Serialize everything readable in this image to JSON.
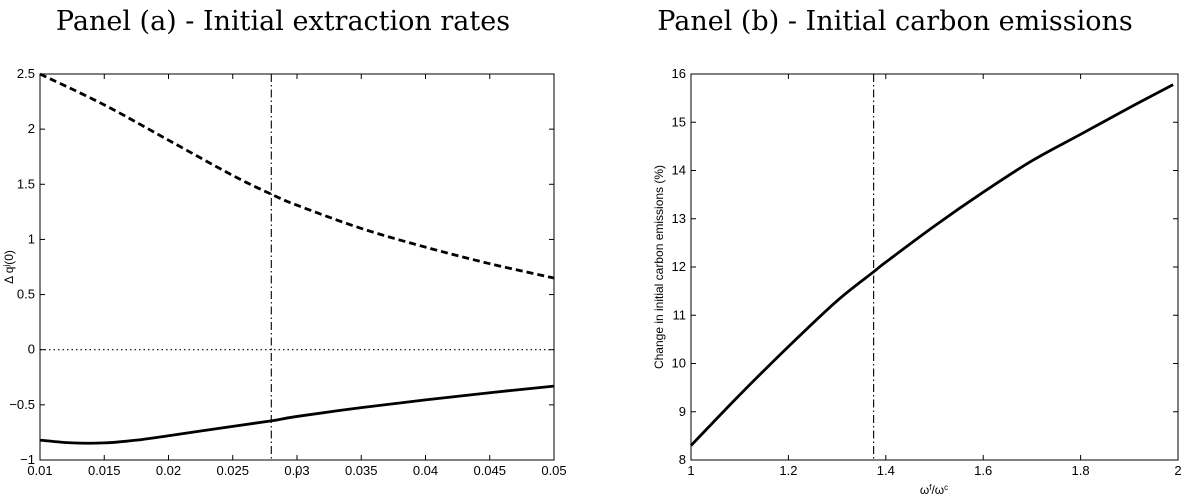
{
  "chart_data": [
    {
      "type": "line",
      "title": "Panel (a) - Initial extraction rates",
      "xlabel": "r",
      "ylabel_prefix": "Δ q",
      "ylabel_sup": "j",
      "ylabel_suffix": "(0)",
      "xlim": [
        0.01,
        0.05
      ],
      "ylim": [
        -1,
        2.5
      ],
      "xticks": [
        0.01,
        0.015,
        0.02,
        0.025,
        0.03,
        0.035,
        0.04,
        0.045,
        0.05
      ],
      "xtick_labels": [
        "0.01",
        "0.015",
        "0.02",
        "0.025",
        "0.03",
        "0.035",
        "0.04",
        "0.045",
        "0.05"
      ],
      "yticks": [
        -1,
        -0.5,
        0,
        0.5,
        1,
        1.5,
        2,
        2.5
      ],
      "ytick_labels": [
        "−1",
        "−0.5",
        "0",
        "0.5",
        "1",
        "1.5",
        "2",
        "2.5"
      ],
      "grid": false,
      "series": [
        {
          "style": "dashed",
          "color": "#000000",
          "x": [
            0.01,
            0.015,
            0.02,
            0.025,
            0.028,
            0.03,
            0.035,
            0.04,
            0.045,
            0.05
          ],
          "y": [
            2.5,
            2.22,
            1.9,
            1.58,
            1.41,
            1.31,
            1.1,
            0.93,
            0.78,
            0.65
          ]
        },
        {
          "style": "solid",
          "color": "#000000",
          "x": [
            0.01,
            0.0125,
            0.015,
            0.0175,
            0.02,
            0.025,
            0.028,
            0.03,
            0.035,
            0.04,
            0.045,
            0.05
          ],
          "y": [
            -0.82,
            -0.845,
            -0.845,
            -0.82,
            -0.78,
            -0.695,
            -0.645,
            -0.605,
            -0.525,
            -0.455,
            -0.39,
            -0.33
          ]
        }
      ],
      "reference_lines": [
        {
          "orientation": "horizontal",
          "value": 0,
          "style": "dotted"
        },
        {
          "orientation": "vertical",
          "value": 0.028,
          "style": "dashdot"
        }
      ]
    },
    {
      "type": "line",
      "title": "Panel (b) - Initial carbon emissions",
      "ylabel": "Change in initial carbon emissions (%)",
      "xlabel_base1": "ω",
      "xlabel_sup1": "f",
      "xlabel_sep": "/",
      "xlabel_base2": "ω",
      "xlabel_sup2": "c",
      "xlim": [
        1,
        2
      ],
      "ylim": [
        8,
        16
      ],
      "xticks": [
        1,
        1.2,
        1.4,
        1.6,
        1.8,
        2
      ],
      "xtick_labels": [
        "1",
        "1.2",
        "1.4",
        "1.6",
        "1.8",
        "2"
      ],
      "yticks": [
        8,
        9,
        10,
        11,
        12,
        13,
        14,
        15,
        16
      ],
      "ytick_labels": [
        "8",
        "9",
        "10",
        "11",
        "12",
        "13",
        "14",
        "15",
        "16"
      ],
      "grid": false,
      "series": [
        {
          "style": "solid",
          "color": "#000000",
          "x": [
            1.0,
            1.1,
            1.2,
            1.3,
            1.375,
            1.4,
            1.5,
            1.6,
            1.7,
            1.8,
            1.9,
            1.99
          ],
          "y": [
            8.3,
            9.35,
            10.35,
            11.3,
            11.9,
            12.1,
            12.85,
            13.55,
            14.2,
            14.75,
            15.3,
            15.78
          ]
        }
      ],
      "reference_lines": [
        {
          "orientation": "vertical",
          "value": 1.375,
          "style": "dashdot"
        }
      ]
    }
  ]
}
